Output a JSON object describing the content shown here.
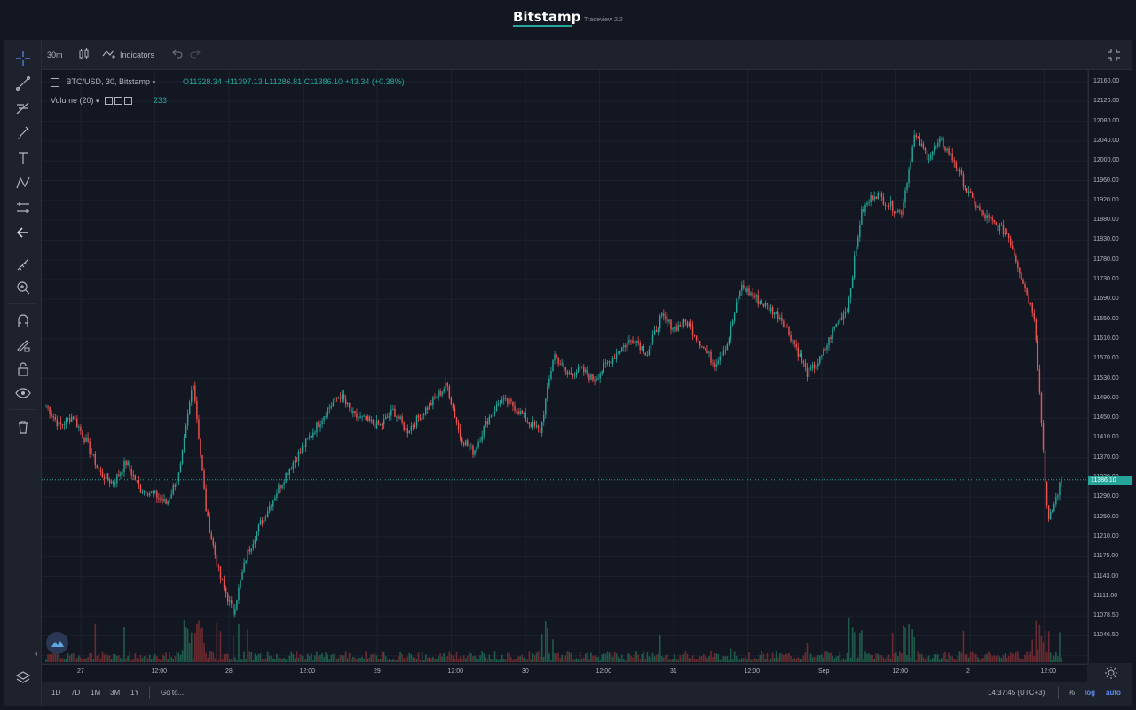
{
  "header": {
    "brand": "Bitstamp",
    "version": "Tradeview 2.2"
  },
  "toolbar": {
    "interval": "30m",
    "indicators": "Indicators"
  },
  "legend": {
    "symbol": "BTC/USD, 30, Bitstamp",
    "open": "O11328.34",
    "high": "H11397.13",
    "low": "L11286.81",
    "close": "C11386.10",
    "change": "+43.34 (+0.38%)",
    "volume_label": "Volume (20)",
    "volume_value": "233"
  },
  "price_axis": {
    "labels": [
      "12160.00",
      "12120.00",
      "12080.00",
      "12040.00",
      "12000.00",
      "11960.00",
      "11920.00",
      "11880.00",
      "11830.00",
      "11780.00",
      "11730.00",
      "11690.00",
      "11650.00",
      "11610.00",
      "11570.00",
      "11530.00",
      "11490.00",
      "11450.00",
      "11410.00",
      "11370.00",
      "11330.00",
      "11290.00",
      "11250.00",
      "11210.00",
      "11175.00",
      "11143.00",
      "11111.00",
      "11078.50",
      "11046.50"
    ],
    "last_price": "11386.10"
  },
  "time_axis": {
    "labels": [
      "27",
      "12:00",
      "28",
      "12:00",
      "29",
      "12:00",
      "30",
      "12:00",
      "31",
      "12:00",
      "Sep",
      "12:00",
      "2",
      "12:00"
    ]
  },
  "bottom": {
    "ranges": [
      "1D",
      "7D",
      "1M",
      "3M",
      "1Y"
    ],
    "goto": "Go to...",
    "clock": "14:37:45 (UTC+3)",
    "percent": "%",
    "log": "log",
    "auto": "auto"
  },
  "chart_data": {
    "type": "candlestick",
    "symbol": "BTC/USD",
    "interval": "30",
    "ylim": [
      11046.5,
      12160
    ],
    "x": [
      "27",
      "12:00",
      "28",
      "12:00",
      "29",
      "12:00",
      "30",
      "12:00",
      "31",
      "12:00",
      "Sep",
      "12:00",
      "2",
      "12:00"
    ],
    "close_series": [
      11530,
      11490,
      11510,
      11460,
      11400,
      11380,
      11420,
      11370,
      11360,
      11340,
      11400,
      11580,
      11320,
      11200,
      11130,
      11240,
      11300,
      11350,
      11400,
      11440,
      11480,
      11520,
      11550,
      11510,
      11500,
      11490,
      11520,
      11480,
      11510,
      11540,
      11570,
      11470,
      11440,
      11500,
      11540,
      11530,
      11500,
      11480,
      11630,
      11590,
      11600,
      11580,
      11610,
      11640,
      11660,
      11630,
      11700,
      11680,
      11690,
      11650,
      11610,
      11650,
      11760,
      11740,
      11720,
      11700,
      11650,
      11590,
      11620,
      11680,
      11720,
      11900,
      11940,
      11920,
      11900,
      12050,
      12010,
      12040,
      12000,
      11940,
      11900,
      11880,
      11860,
      11780,
      11700,
      11300,
      11386
    ],
    "up_color": "#26a69a",
    "down_color": "#ef5350"
  }
}
